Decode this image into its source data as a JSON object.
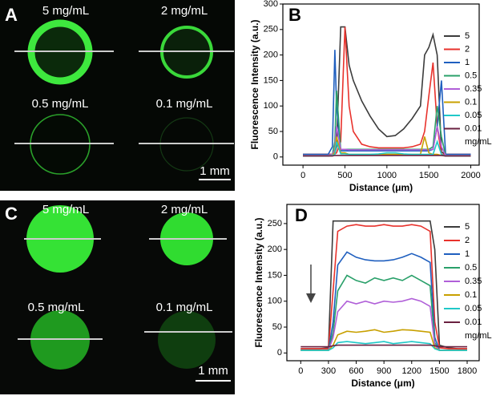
{
  "panels": [
    {
      "label": "A",
      "captions": [
        "5 mg/mL",
        "2 mg/mL",
        "0.5 mg/mL",
        "0.1 mg/mL"
      ],
      "scale_bar": "1 mm"
    },
    {
      "label": "C",
      "captions": [
        "5 mg/mL",
        "2 mg/mL",
        "0.5 mg/mL",
        "0.1 mg/mL"
      ],
      "scale_bar": "1 mm"
    }
  ],
  "chart_data": [
    {
      "type": "line",
      "label": "B",
      "x_label": "Distance (μm)",
      "y_label": "Fluorescence Intensity (a.u.)",
      "legend_unit": "mg/mL",
      "legend": "right",
      "xlim": [
        -240,
        2100
      ],
      "xticks": [
        0,
        500,
        1000,
        1500,
        2000
      ],
      "ylim": [
        -16,
        300
      ],
      "yticks": [
        0,
        50,
        100,
        150,
        200,
        250,
        300
      ],
      "x": [
        0,
        100,
        200,
        300,
        350,
        380,
        400,
        450,
        500,
        550,
        600,
        700,
        800,
        900,
        1000,
        1100,
        1200,
        1300,
        1400,
        1450,
        1500,
        1550,
        1600,
        1650,
        1700,
        1800,
        1900,
        2000
      ],
      "series": [
        {
          "name": "5",
          "color": "#3c3c3c",
          "values": [
            5,
            5,
            5,
            5,
            5,
            8,
            20,
            255,
            255,
            180,
            150,
            110,
            80,
            55,
            40,
            42,
            55,
            75,
            100,
            200,
            215,
            240,
            200,
            10,
            5,
            5,
            5,
            5
          ]
        },
        {
          "name": "2",
          "color": "#e8322c",
          "values": [
            5,
            5,
            5,
            5,
            5,
            6,
            8,
            30,
            255,
            100,
            50,
            25,
            20,
            18,
            18,
            18,
            18,
            20,
            25,
            50,
            120,
            185,
            60,
            5,
            5,
            5,
            5,
            5
          ]
        },
        {
          "name": "1",
          "color": "#1f5fbf",
          "values": [
            5,
            5,
            5,
            5,
            20,
            210,
            100,
            12,
            12,
            12,
            12,
            12,
            12,
            12,
            12,
            12,
            12,
            12,
            12,
            12,
            12,
            15,
            60,
            150,
            5,
            5,
            5,
            5
          ]
        },
        {
          "name": "0.5",
          "color": "#2aa06a",
          "values": [
            3,
            3,
            3,
            3,
            5,
            30,
            130,
            15,
            15,
            15,
            15,
            15,
            15,
            15,
            15,
            15,
            15,
            15,
            15,
            15,
            15,
            20,
            100,
            40,
            3,
            3,
            3,
            3
          ]
        },
        {
          "name": "0.35",
          "color": "#b05fd8",
          "values": [
            3,
            3,
            3,
            3,
            5,
            15,
            60,
            15,
            15,
            14,
            14,
            14,
            14,
            14,
            14,
            14,
            14,
            14,
            14,
            14,
            14,
            15,
            60,
            20,
            3,
            3,
            3,
            3
          ]
        },
        {
          "name": "0.1",
          "color": "#c8a000",
          "values": [
            2,
            2,
            2,
            2,
            3,
            10,
            40,
            8,
            8,
            5,
            5,
            5,
            5,
            5,
            5,
            5,
            5,
            5,
            5,
            40,
            8,
            5,
            5,
            3,
            2,
            2,
            2,
            2
          ]
        },
        {
          "name": "0.05",
          "color": "#20c8c8",
          "values": [
            2,
            2,
            2,
            2,
            3,
            5,
            30,
            6,
            6,
            5,
            5,
            5,
            5,
            6,
            8,
            8,
            6,
            5,
            5,
            5,
            5,
            5,
            30,
            5,
            2,
            2,
            2,
            2
          ]
        },
        {
          "name": "0.01",
          "color": "#6a2040",
          "values": [
            2,
            2,
            2,
            2,
            2,
            3,
            3,
            3,
            3,
            3,
            3,
            3,
            3,
            3,
            3,
            3,
            3,
            3,
            3,
            3,
            3,
            3,
            3,
            3,
            2,
            2,
            2,
            2
          ]
        }
      ]
    },
    {
      "type": "line",
      "label": "D",
      "x_label": "Distance (μm)",
      "y_label": "Fluorescence Intensity (a.u.)",
      "legend_unit": "mg/mL",
      "legend": "right",
      "xlim": [
        -150,
        1930
      ],
      "xticks": [
        0,
        300,
        600,
        900,
        1200,
        1500,
        1800
      ],
      "ylim": [
        -15,
        287
      ],
      "yticks": [
        0,
        50,
        100,
        150,
        200,
        250
      ],
      "x": [
        0,
        100,
        200,
        300,
        350,
        400,
        500,
        600,
        700,
        800,
        900,
        1000,
        1100,
        1200,
        1300,
        1400,
        1450,
        1500,
        1600,
        1700,
        1800
      ],
      "series": [
        {
          "name": "5",
          "color": "#3c3c3c",
          "values": [
            8,
            8,
            8,
            10,
            255,
            255,
            255,
            255,
            255,
            255,
            255,
            255,
            255,
            255,
            255,
            255,
            200,
            15,
            10,
            8,
            8
          ]
        },
        {
          "name": "2",
          "color": "#e8322c",
          "values": [
            8,
            8,
            8,
            8,
            120,
            235,
            245,
            248,
            245,
            245,
            248,
            245,
            245,
            248,
            245,
            235,
            60,
            10,
            8,
            8,
            8
          ]
        },
        {
          "name": "1",
          "color": "#1f5fbf",
          "values": [
            5,
            5,
            5,
            5,
            60,
            170,
            195,
            185,
            180,
            178,
            178,
            180,
            185,
            192,
            185,
            175,
            30,
            5,
            5,
            5,
            5
          ]
        },
        {
          "name": "0.5",
          "color": "#2aa06a",
          "values": [
            5,
            5,
            5,
            5,
            40,
            120,
            150,
            140,
            135,
            145,
            140,
            145,
            140,
            150,
            140,
            130,
            20,
            5,
            5,
            5,
            5
          ]
        },
        {
          "name": "0.35",
          "color": "#b05fd8",
          "values": [
            5,
            5,
            5,
            5,
            30,
            80,
            100,
            95,
            100,
            95,
            100,
            98,
            100,
            105,
            100,
            90,
            15,
            5,
            5,
            5,
            5
          ]
        },
        {
          "name": "0.1",
          "color": "#c8a000",
          "values": [
            5,
            5,
            5,
            5,
            15,
            35,
            42,
            40,
            42,
            45,
            40,
            42,
            45,
            44,
            42,
            40,
            10,
            5,
            5,
            5,
            5
          ]
        },
        {
          "name": "0.05",
          "color": "#20c8c8",
          "values": [
            5,
            5,
            5,
            5,
            10,
            20,
            22,
            20,
            18,
            20,
            22,
            18,
            20,
            22,
            20,
            18,
            8,
            5,
            5,
            5,
            5
          ]
        },
        {
          "name": "0.01",
          "color": "#6a2040",
          "values": [
            12,
            12,
            12,
            12,
            14,
            15,
            15,
            15,
            15,
            15,
            15,
            15,
            15,
            15,
            15,
            15,
            14,
            12,
            12,
            12,
            12
          ]
        }
      ]
    }
  ]
}
